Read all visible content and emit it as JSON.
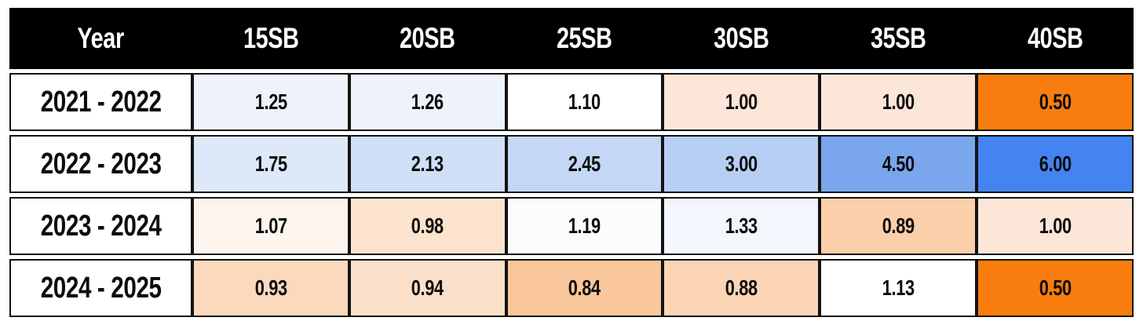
{
  "colors": {
    "header_bg": "#000000",
    "header_text": "#ffffff",
    "cell_border": "#131313",
    "value_text": "#0d0d0d",
    "scale_low_orange": "#f87d0e",
    "scale_mid_white": "#ffffff",
    "scale_high_blue": "#4484f0"
  },
  "table": {
    "year_header": "Year",
    "columns": [
      "15SB",
      "20SB",
      "25SB",
      "30SB",
      "35SB",
      "40SB"
    ],
    "rows": [
      {
        "year": "2021 - 2022",
        "cells": [
          {
            "value": "1.25",
            "bg": "#eef3fb"
          },
          {
            "value": "1.26",
            "bg": "#eef3fb"
          },
          {
            "value": "1.10",
            "bg": "#ffffff"
          },
          {
            "value": "1.00",
            "bg": "#fce6d8"
          },
          {
            "value": "1.00",
            "bg": "#fce6d8"
          },
          {
            "value": "0.50",
            "bg": "#f87d0e"
          }
        ]
      },
      {
        "year": "2022 - 2023",
        "cells": [
          {
            "value": "1.75",
            "bg": "#dde8f8"
          },
          {
            "value": "2.13",
            "bg": "#cfdff7"
          },
          {
            "value": "2.45",
            "bg": "#c4d7f5"
          },
          {
            "value": "3.00",
            "bg": "#b6cef3"
          },
          {
            "value": "4.50",
            "bg": "#7aa6ee"
          },
          {
            "value": "6.00",
            "bg": "#4484f0"
          }
        ]
      },
      {
        "year": "2023 - 2024",
        "cells": [
          {
            "value": "1.07",
            "bg": "#fdf4ee"
          },
          {
            "value": "0.98",
            "bg": "#fce3cd"
          },
          {
            "value": "1.19",
            "bg": "#fbfcfe"
          },
          {
            "value": "1.33",
            "bg": "#f3f6fc"
          },
          {
            "value": "0.89",
            "bg": "#facfa9"
          },
          {
            "value": "1.00",
            "bg": "#fce6d8"
          }
        ]
      },
      {
        "year": "2024 - 2025",
        "cells": [
          {
            "value": "0.93",
            "bg": "#fbd9bd"
          },
          {
            "value": "0.94",
            "bg": "#fcdfc9"
          },
          {
            "value": "0.84",
            "bg": "#fac79c"
          },
          {
            "value": "0.88",
            "bg": "#fbd5b6"
          },
          {
            "value": "1.13",
            "bg": "#ffffff"
          },
          {
            "value": "0.50",
            "bg": "#f87d0e"
          }
        ]
      }
    ]
  },
  "chart_data": {
    "type": "heatmap",
    "title": "",
    "columns": [
      "15SB",
      "20SB",
      "25SB",
      "30SB",
      "35SB",
      "40SB"
    ],
    "rows": [
      "2021 - 2022",
      "2022 - 2023",
      "2023 - 2024",
      "2024 - 2025"
    ],
    "values": [
      [
        1.25,
        1.26,
        1.1,
        1.0,
        1.0,
        0.5
      ],
      [
        1.75,
        2.13,
        2.45,
        3.0,
        4.5,
        6.0
      ],
      [
        1.07,
        0.98,
        1.19,
        1.33,
        0.89,
        1.0
      ],
      [
        0.93,
        0.94,
        0.84,
        0.88,
        1.13,
        0.5
      ]
    ],
    "color_scale": {
      "low": {
        "value": 0.5,
        "color": "#f87d0e"
      },
      "mid": {
        "value": 1.1,
        "color": "#ffffff"
      },
      "high": {
        "value": 6.0,
        "color": "#4484f0"
      }
    },
    "legend": "none",
    "grid": "black cell borders"
  }
}
